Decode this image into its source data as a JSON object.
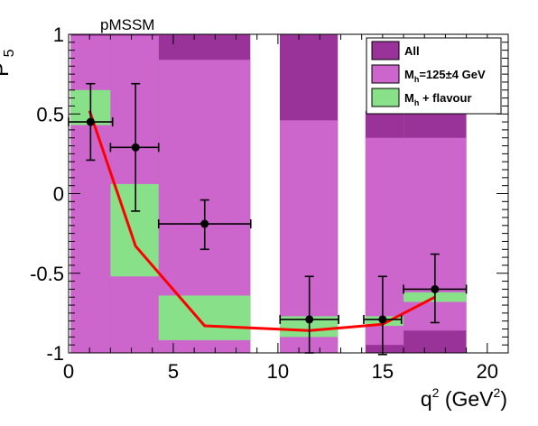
{
  "chart_data": {
    "type": "scatter",
    "title": "pMSSM",
    "ylabel": "P'",
    "ylabel_sub": "5",
    "xlabel": "q",
    "xlabel_sup": "2",
    "xlabel_unit_open": " (GeV",
    "xlabel_unit_sup": "2",
    "xlabel_unit_close": ")",
    "xlim": [
      0,
      21
    ],
    "ylim": [
      -1,
      1
    ],
    "x_ticks": [
      0,
      5,
      10,
      15,
      20
    ],
    "x_tick_labels": [
      "0",
      "5",
      "10",
      "15",
      "20"
    ],
    "y_ticks": [
      -1,
      -0.5,
      0,
      0.5,
      1
    ],
    "y_tick_labels": [
      "-1",
      "-0.5",
      "0",
      "0.5",
      "1"
    ],
    "grid": false,
    "legend_position": "top-right",
    "legend": [
      {
        "label": "All",
        "sub": "",
        "rest": "",
        "color": "#993399"
      },
      {
        "label": "M",
        "sub": "h",
        "rest": "=125±4 GeV",
        "color": "#cc66cc"
      },
      {
        "label": "M",
        "sub": "h",
        "rest": " + flavour",
        "color": "#88e088"
      }
    ],
    "bands_all": [
      {
        "x": [
          0.1,
          2
        ],
        "y": [
          -1,
          1
        ]
      },
      {
        "x": [
          2,
          4.3
        ],
        "y": [
          -1,
          1
        ]
      },
      {
        "x": [
          4.3,
          8.68
        ],
        "y": [
          -1,
          1
        ]
      },
      {
        "x": [
          10.09,
          12.86
        ],
        "y": [
          -1,
          1
        ]
      },
      {
        "x": [
          14.18,
          16
        ],
        "y": [
          -1,
          0.52
        ]
      },
      {
        "x": [
          16,
          19
        ],
        "y": [
          -1,
          0.52
        ]
      }
    ],
    "bands_mh": [
      {
        "x": [
          0.1,
          2
        ],
        "y": [
          -1,
          0.99
        ]
      },
      {
        "x": [
          2,
          4.3
        ],
        "y": [
          -1,
          0.99
        ]
      },
      {
        "x": [
          4.3,
          8.68
        ],
        "y": [
          -1,
          0.84
        ]
      },
      {
        "x": [
          10.09,
          12.86
        ],
        "y": [
          -1,
          0.46
        ]
      },
      {
        "x": [
          14.18,
          16
        ],
        "y": [
          -0.95,
          0.35
        ]
      },
      {
        "x": [
          16,
          19
        ],
        "y": [
          -0.86,
          0.35
        ]
      }
    ],
    "bands_flavour": [
      {
        "x": [
          0.1,
          2
        ],
        "y": [
          0.43,
          0.65
        ]
      },
      {
        "x": [
          2,
          4.3
        ],
        "y": [
          -0.52,
          0.06
        ]
      },
      {
        "x": [
          4.3,
          8.68
        ],
        "y": [
          -0.92,
          -0.64
        ]
      },
      {
        "x": [
          10.09,
          12.86
        ],
        "y": [
          -0.9,
          -0.77
        ]
      },
      {
        "x": [
          14.18,
          16
        ],
        "y": [
          -0.83,
          -0.77
        ]
      },
      {
        "x": [
          16,
          19
        ],
        "y": [
          -0.68,
          -0.62
        ]
      }
    ],
    "points": [
      {
        "x": 1.05,
        "y": 0.45,
        "xerr_lo": 1.05,
        "xerr_hi": 1.05,
        "yerr_lo": 0.24,
        "yerr_hi": 0.24
      },
      {
        "x": 3.2,
        "y": 0.29,
        "xerr_lo": 1.2,
        "xerr_hi": 1.1,
        "yerr_lo": 0.4,
        "yerr_hi": 0.4
      },
      {
        "x": 6.5,
        "y": -0.19,
        "xerr_lo": 2.2,
        "xerr_hi": 2.2,
        "yerr_lo": 0.16,
        "yerr_hi": 0.15
      },
      {
        "x": 11.5,
        "y": -0.79,
        "xerr_lo": 1.4,
        "xerr_hi": 1.4,
        "yerr_lo": 0.21,
        "yerr_hi": 0.27
      },
      {
        "x": 15.0,
        "y": -0.79,
        "xerr_lo": 0.9,
        "xerr_hi": 0.9,
        "yerr_lo": 0.22,
        "yerr_hi": 0.27
      },
      {
        "x": 17.5,
        "y": -0.6,
        "xerr_lo": 1.5,
        "xerr_hi": 1.5,
        "yerr_lo": 0.21,
        "yerr_hi": 0.22
      }
    ],
    "sm_curve": {
      "color": "#ff0000",
      "x": [
        1.0,
        3.2,
        6.5,
        11.5,
        15.0,
        17.5
      ],
      "y": [
        0.52,
        -0.33,
        -0.83,
        -0.86,
        -0.82,
        -0.65
      ]
    }
  }
}
